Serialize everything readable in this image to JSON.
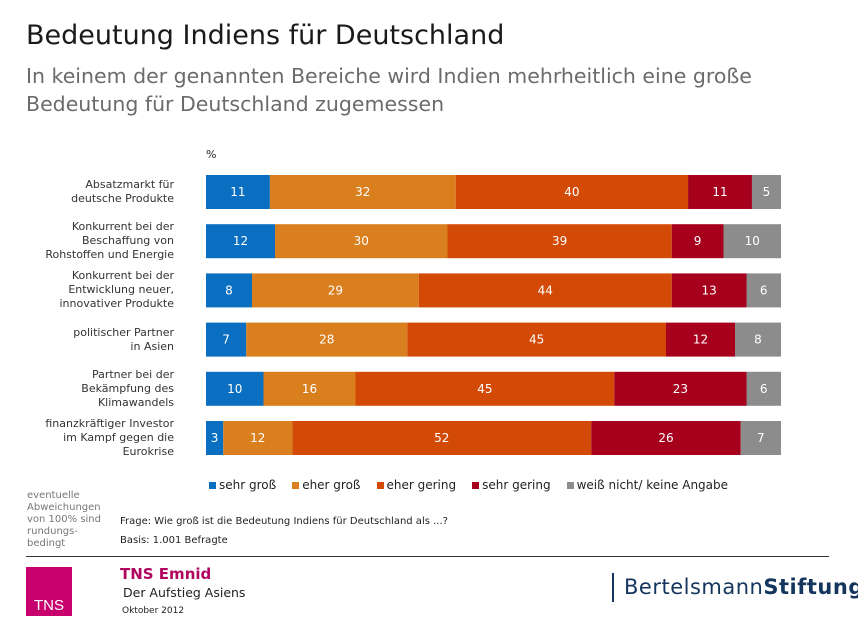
{
  "title": "Bedeutung Indiens für Deutschland",
  "subtitle": "In keinem der genannten Bereiche wird Indien mehrheitlich eine große Bedeutung für Deutschland zugemessen",
  "chart_data": {
    "type": "bar",
    "orientation": "horizontal-stacked-100",
    "unit": "%",
    "categories": [
      "Absatzmarkt für\ndeutsche Produkte",
      "Konkurrent bei der\nBeschaffung von\nRohstoffen und Energie",
      "Konkurrent bei der\nEntwicklung neuer,\ninnovativer Produkte",
      "politischer Partner\nin Asien",
      "Partner bei der\nBekämpfung des\nKlimawandels",
      "finanzkräftiger Investor\nim Kampf gegen die\nEurokrise"
    ],
    "series": [
      {
        "name": "sehr groß",
        "color": "#0a6fc1",
        "values": [
          11,
          12,
          8,
          7,
          10,
          3
        ]
      },
      {
        "name": "eher groß",
        "color": "#d97f1e",
        "values": [
          32,
          30,
          29,
          28,
          16,
          12
        ]
      },
      {
        "name": "eher gering",
        "color": "#d34a07",
        "values": [
          40,
          39,
          44,
          45,
          45,
          52
        ]
      },
      {
        "name": "sehr gering",
        "color": "#a6001d",
        "values": [
          11,
          9,
          13,
          12,
          23,
          26
        ]
      },
      {
        "name": "weiß nicht/ keine Angabe",
        "color": "#8c8c8c",
        "values": [
          5,
          10,
          6,
          8,
          6,
          7
        ]
      }
    ],
    "legend": "bottom"
  },
  "note": "eventuelle Abweichungen von 100% sind rundungs- bedingt",
  "frage": "Frage: Wie groß ist die Bedeutung Indiens für Deutschland als ...?",
  "basis": "Basis:  1.001 Befragte",
  "footer": {
    "logo": "TNS",
    "company": "TNS Emnid",
    "study": "Der Aufstieg Asiens",
    "date": "Oktober 2012",
    "partner_a": "Bertelsmann",
    "partner_b": "Stiftung"
  }
}
